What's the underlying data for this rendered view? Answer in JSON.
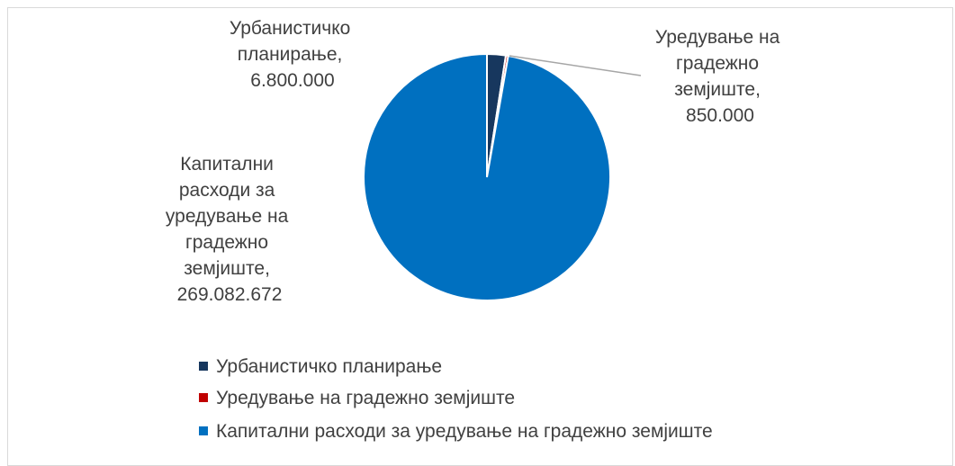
{
  "chart_data": {
    "type": "pie",
    "categories": [
      "Урбанистичко планирање",
      "Уредување на градежно земјиште",
      "Капитални расходи за уредување на градежно земјиште"
    ],
    "values": [
      6800000,
      850000,
      269082672
    ],
    "value_labels": [
      "6.800.000",
      "850.000",
      "269.082.672"
    ],
    "colors": [
      "#17375e",
      "#c00000",
      "#0070c0"
    ],
    "label_lines": [
      [
        "Урбанистичко",
        "планирање,",
        "6.800.000"
      ],
      [
        "Уредување на",
        "градежно",
        "земјиште,",
        "850.000"
      ],
      [
        "Капитални",
        "расходи за",
        "уредување на",
        "градежно",
        "земјиште,",
        "269.082.672"
      ]
    ],
    "legend": {
      "placement": "bottom",
      "entries": [
        "Урбанистичко планирање",
        "Уредување на градежно земјиште",
        "Капитални расходи за уредување на градежно земјиште"
      ]
    }
  }
}
